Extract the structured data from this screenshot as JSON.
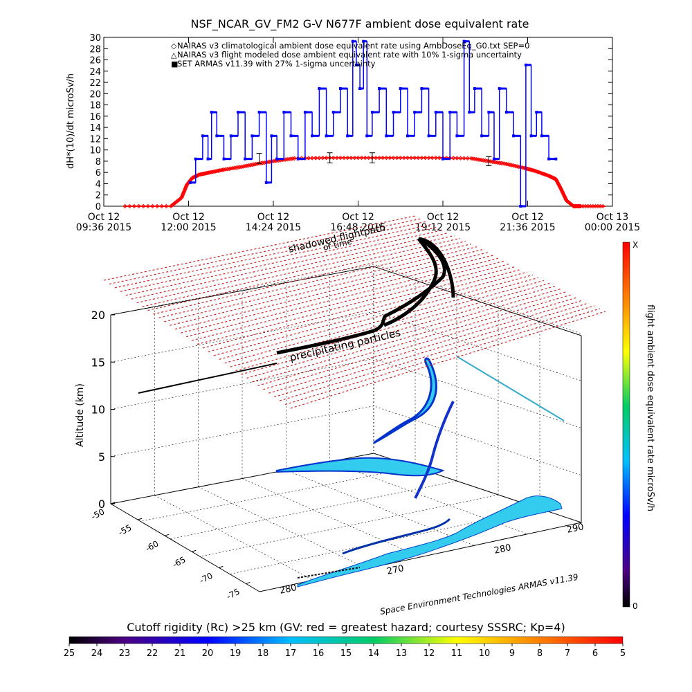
{
  "title": "NSF_NCAR_GV_FM2 G-V    N677F  ambient dose equivalent rate",
  "legend": [
    {
      "symbol": "◇",
      "color": "#ff0000",
      "text": "NAIRAS v3 climatological ambient dose equivalent rate using AmbDoseEq_G0.txt SEP=0"
    },
    {
      "symbol": "△",
      "color": "#000000",
      "text": "NAIRAS v3 flight modeled dose ambient equivalent rate with 10% 1-sigma uncertainty"
    },
    {
      "symbol": "■",
      "color": "#0000ff",
      "text": "SET ARMAS v11.39 with 27% 1-sigma uncertainty"
    }
  ],
  "chart_data": [
    {
      "type": "line",
      "ylabel": "dH*(10)/dt microSv/h",
      "ylim": [
        0,
        30
      ],
      "yticks": [
        0,
        2,
        4,
        6,
        8,
        10,
        12,
        14,
        16,
        18,
        20,
        22,
        24,
        26,
        28,
        30
      ],
      "xlim_hours": [
        9.6,
        24.0
      ],
      "xticks": [
        {
          "line1": "Oct 12",
          "line2": "09:36 2015",
          "h": 9.6
        },
        {
          "line1": "Oct 12",
          "line2": "12:00 2015",
          "h": 12.0
        },
        {
          "line1": "Oct 12",
          "line2": "14:24 2015",
          "h": 14.4
        },
        {
          "line1": "Oct 12",
          "line2": "16:48 2015",
          "h": 16.8
        },
        {
          "line1": "Oct 12",
          "line2": "19:12 2015",
          "h": 19.2
        },
        {
          "line1": "Oct 12",
          "line2": "21:36 2015",
          "h": 21.6
        },
        {
          "line1": "Oct 13",
          "line2": "00:00 2015",
          "h": 24.0
        }
      ],
      "series": [
        {
          "name": "NAIRAS v3 climatological ambient dose equivalent rate using AmbDoseEq_G0.txt SEP=0",
          "color": "#ff0000",
          "x": [
            10.2,
            11.5,
            11.8,
            11.95,
            12.1,
            12.3,
            12.6,
            13.0,
            13.5,
            14.0,
            14.5,
            15.0,
            16.0,
            17.0,
            18.0,
            19.0,
            20.0,
            20.5,
            21.0,
            21.5,
            21.8,
            22.2,
            22.4,
            22.55,
            22.7,
            22.9,
            23.1,
            23.8
          ],
          "y": [
            0,
            0,
            1.5,
            3.8,
            5.0,
            5.6,
            6.0,
            6.5,
            7.0,
            7.6,
            8.1,
            8.5,
            8.6,
            8.6,
            8.6,
            8.6,
            8.5,
            8.0,
            7.5,
            6.8,
            6.3,
            5.4,
            4.8,
            3.0,
            1.0,
            0,
            0,
            0
          ]
        },
        {
          "name": "SET ARMAS v11.39 with 27% 1-sigma uncertainty",
          "color": "#0000ff",
          "x": [
            12.05,
            12.2,
            12.4,
            12.55,
            12.65,
            12.8,
            13.0,
            13.2,
            13.4,
            13.6,
            13.8,
            14.0,
            14.2,
            14.35,
            14.5,
            14.7,
            14.9,
            15.1,
            15.3,
            15.5,
            15.7,
            15.9,
            16.1,
            16.3,
            16.5,
            16.65,
            16.75,
            16.85,
            16.95,
            17.05,
            17.2,
            17.4,
            17.6,
            17.8,
            18.0,
            18.2,
            18.4,
            18.6,
            18.8,
            19.0,
            19.2,
            19.4,
            19.6,
            19.8,
            19.95,
            20.1,
            20.3,
            20.5,
            20.65,
            20.8,
            21.0,
            21.2,
            21.4,
            21.55,
            21.7,
            21.85,
            22.0,
            22.2,
            22.4
          ],
          "y": [
            4.2,
            8.4,
            12.5,
            8.4,
            16.7,
            12.5,
            8.4,
            12.5,
            16.7,
            8.4,
            12.5,
            16.7,
            4.2,
            12.5,
            8.4,
            16.7,
            12.5,
            8.4,
            16.7,
            12.5,
            20.9,
            12.5,
            16.7,
            20.9,
            12.5,
            29.3,
            25.1,
            20.9,
            29.3,
            12.5,
            16.7,
            20.9,
            12.5,
            16.7,
            20.9,
            12.5,
            16.7,
            20.9,
            12.5,
            16.7,
            8.4,
            16.7,
            12.5,
            29.3,
            16.7,
            20.9,
            12.5,
            16.7,
            8.4,
            20.9,
            16.7,
            12.5,
            0,
            25.1,
            12.5,
            16.7,
            12.5,
            8.4,
            8.4
          ]
        }
      ],
      "error_bars": [
        {
          "x": 14.0,
          "y": 8.5,
          "err": 0.9
        },
        {
          "x": 16.0,
          "y": 8.6,
          "err": 0.9
        },
        {
          "x": 17.2,
          "y": 8.6,
          "err": 0.9
        },
        {
          "x": 20.5,
          "y": 8.0,
          "err": 0.8
        }
      ]
    },
    {
      "type": "3d-trajectory",
      "zlabel": "Altitude (km)",
      "zticks": [
        "0",
        "5",
        "10",
        "15",
        "20"
      ],
      "lat_ticks": [
        "-50",
        "-55",
        "-60",
        "-65",
        "-70",
        "-75"
      ],
      "lon_ticks": [
        "280",
        "270",
        "280",
        "290"
      ],
      "annotations": [
        "shadowed flightpath",
        "of time",
        "precipitating particles"
      ],
      "credit": "Space Environment Technologies ARMAS v11.39",
      "colorbar": {
        "label": "flight ambient dose equivalent rate microSv/h",
        "top_label": "X",
        "bottom_label": "0"
      }
    },
    {
      "type": "colorbar",
      "title": "Cutoff rigidity (Rc) >25 km (GV: red = greatest hazard; courtesy SSSRC; Kp=4)",
      "ticks": [
        "25",
        "24",
        "23",
        "22",
        "21",
        "20",
        "19",
        "18",
        "17",
        "16",
        "15",
        "14",
        "13",
        "12",
        "11",
        "10",
        "9",
        "8",
        "7",
        "6",
        "5"
      ]
    }
  ]
}
